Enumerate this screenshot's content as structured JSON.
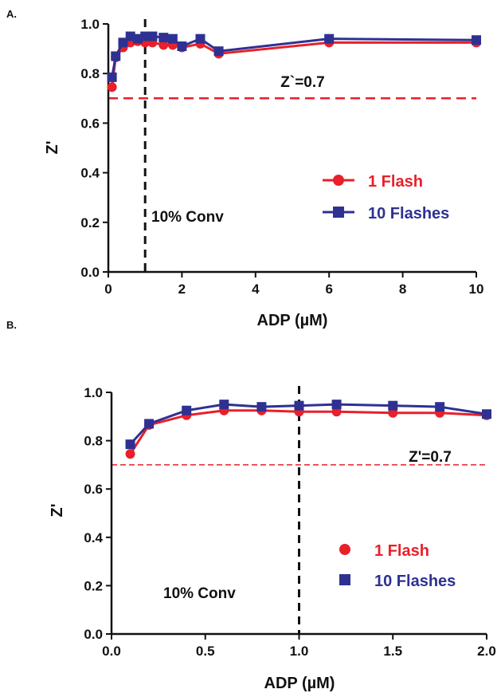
{
  "chart_data": [
    {
      "type": "line",
      "panel_label": "A.",
      "title": "",
      "xlabel": "ADP (µM)",
      "ylabel": "Z'",
      "xlim": [
        0,
        10
      ],
      "ylim": [
        0,
        1.0
      ],
      "x_ticks": [
        "0",
        "2",
        "4",
        "6",
        "8",
        "10"
      ],
      "y_ticks": [
        "0.0",
        "0.2",
        "0.4",
        "0.6",
        "0.8",
        "1.0"
      ],
      "grid": false,
      "legend": "center-right",
      "series": [
        {
          "name": "1 Flash",
          "marker": "circle",
          "color": "#e8202a",
          "x": [
            0.1,
            0.2,
            0.4,
            0.6,
            0.8,
            1.0,
            1.2,
            1.5,
            1.75,
            2.0,
            2.5,
            3.0,
            6.0,
            10.0
          ],
          "values": [
            0.745,
            0.865,
            0.905,
            0.925,
            0.93,
            0.925,
            0.925,
            0.915,
            0.915,
            0.905,
            0.92,
            0.88,
            0.925,
            0.925
          ]
        },
        {
          "name": "10 Flashes",
          "marker": "square",
          "color": "#2e3192",
          "x": [
            0.1,
            0.2,
            0.4,
            0.6,
            0.8,
            1.0,
            1.2,
            1.5,
            1.75,
            2.0,
            2.5,
            3.0,
            6.0,
            10.0
          ],
          "values": [
            0.785,
            0.87,
            0.925,
            0.95,
            0.94,
            0.95,
            0.95,
            0.945,
            0.94,
            0.91,
            0.94,
            0.89,
            0.94,
            0.935
          ]
        }
      ],
      "reference_lines": [
        {
          "axis": "y",
          "value": 0.7,
          "label": "Z`=0.7",
          "color": "#e8202a"
        },
        {
          "axis": "x",
          "value": 1.0,
          "label": "10% Conv",
          "color": "#111111"
        }
      ]
    },
    {
      "type": "scatter",
      "panel_label": "B.",
      "title": "",
      "xlabel": "ADP (µM)",
      "ylabel": "Z'",
      "xlim": [
        0,
        2.0
      ],
      "ylim": [
        0,
        1.0
      ],
      "x_ticks": [
        "0.0",
        "0.5",
        "1.0",
        "1.5",
        "2.0"
      ],
      "y_ticks": [
        "0.0",
        "0.2",
        "0.4",
        "0.6",
        "0.8",
        "1.0"
      ],
      "grid": false,
      "legend": "center-right",
      "series": [
        {
          "name": "1 Flash",
          "marker": "circle",
          "color": "#e8202a",
          "x": [
            0.1,
            0.2,
            0.4,
            0.6,
            0.8,
            1.0,
            1.2,
            1.5,
            1.75,
            2.0
          ],
          "values": [
            0.745,
            0.865,
            0.905,
            0.925,
            0.925,
            0.92,
            0.92,
            0.915,
            0.915,
            0.905
          ]
        },
        {
          "name": "10 Flashes",
          "marker": "square",
          "color": "#2e3192",
          "x": [
            0.1,
            0.2,
            0.4,
            0.6,
            0.8,
            1.0,
            1.2,
            1.5,
            1.75,
            2.0
          ],
          "values": [
            0.785,
            0.87,
            0.925,
            0.95,
            0.94,
            0.945,
            0.95,
            0.945,
            0.94,
            0.91
          ]
        }
      ],
      "reference_lines": [
        {
          "axis": "y",
          "value": 0.7,
          "label": "Z'=0.7",
          "color": "#e8202a"
        },
        {
          "axis": "x",
          "value": 1.0,
          "label": "10% Conv",
          "color": "#111111"
        }
      ]
    }
  ]
}
